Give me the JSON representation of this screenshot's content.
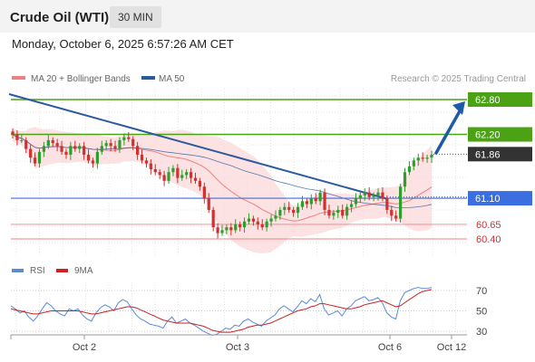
{
  "header": {
    "title": "Crude Oil (WTI)",
    "timeframe": "30 MIN",
    "datetime": "Monday, October 6, 2025 6:57:26 AM CET"
  },
  "legend": {
    "ma20_label": "MA 20 + Bollinger Bands",
    "ma50_label": "MA 50",
    "credit": "Research © 2025 Trading Central"
  },
  "colors": {
    "bull": "#2e9e2e",
    "bear": "#d13030",
    "ma20": "#f08080",
    "ma50": "#2c5aa0",
    "bollinger_fill": "#fbd8d8",
    "resistance": "#4aa214",
    "support": "#3b6fe0",
    "pivot": "#f08080",
    "target_arrow": "#1e5aa8",
    "current": "#333333",
    "rsi": "#5b8ad8",
    "rsi_ma": "#cc2222"
  },
  "chart_data": [
    {
      "type": "candlestick",
      "title": "Crude Oil (WTI)",
      "timeframe": "30 MIN",
      "x_tick_labels": [
        "Oct 2",
        "Oct 3",
        "Oct 6",
        "Oct 12"
      ],
      "ylim": [
        60.28,
        62.93
      ],
      "indicators": [
        "MA 20 + Bollinger Bands",
        "MA 50"
      ],
      "price_levels": [
        {
          "value": 62.8,
          "label": "62.80",
          "kind": "resistance"
        },
        {
          "value": 62.2,
          "label": "62.20",
          "kind": "resistance"
        },
        {
          "value": 61.86,
          "label": "61.86",
          "kind": "current"
        },
        {
          "value": 61.1,
          "label": "61.10",
          "kind": "support"
        },
        {
          "value": 60.65,
          "label": "60.65",
          "kind": "pivot"
        },
        {
          "value": 60.4,
          "label": "60.40",
          "kind": "pivot"
        }
      ],
      "close": [
        62.2,
        62.1,
        62.1,
        61.95,
        61.8,
        61.7,
        61.9,
        62.0,
        62.1,
        62.05,
        62.0,
        61.9,
        61.85,
        62.0,
        61.95,
        62.0,
        61.85,
        61.75,
        61.7,
        61.9,
        62.0,
        62.05,
        62.0,
        61.95,
        62.1,
        62.15,
        62.12,
        62.0,
        61.85,
        61.75,
        61.7,
        61.6,
        61.55,
        61.5,
        61.4,
        61.55,
        61.62,
        61.45,
        61.5,
        61.55,
        61.45,
        61.4,
        61.3,
        61.1,
        60.9,
        60.6,
        60.5,
        60.55,
        60.6,
        60.55,
        60.65,
        60.6,
        60.7,
        60.75,
        60.7,
        60.65,
        60.6,
        60.7,
        60.75,
        60.8,
        60.9,
        60.95,
        60.9,
        60.85,
        60.95,
        61.05,
        61.0,
        61.1,
        61.05,
        61.2,
        60.9,
        60.8,
        60.85,
        60.9,
        60.8,
        60.95,
        61.0,
        61.1,
        61.15,
        61.2,
        61.12,
        61.15,
        61.2,
        61.1,
        60.9,
        60.8,
        60.75,
        61.3,
        61.55,
        61.65,
        61.75,
        61.8,
        61.78,
        61.8,
        61.85
      ],
      "rsi": {
        "levels": [
          70,
          50,
          30
        ],
        "series": [
          {
            "name": "RSI",
            "values": [
              55,
              52,
              48,
              50,
              44,
              40,
              45,
              52,
              58,
              55,
              50,
              47,
              45,
              52,
              50,
              52,
              46,
              42,
              40,
              48,
              53,
              56,
              54,
              50,
              58,
              61,
              59,
              52,
              46,
              42,
              40,
              37,
              36,
              35,
              33,
              40,
              44,
              38,
              40,
              42,
              38,
              36,
              33,
              30,
              28,
              26,
              27,
              30,
              33,
              32,
              36,
              35,
              40,
              42,
              39,
              37,
              35,
              40,
              43,
              46,
              52,
              55,
              52,
              49,
              54,
              60,
              57,
              62,
              59,
              66,
              52,
              46,
              48,
              50,
              45,
              52,
              55,
              60,
              62,
              64,
              60,
              61,
              63,
              58,
              48,
              44,
              42,
              60,
              68,
              70,
              72,
              73,
              72,
              72,
              73
            ]
          },
          {
            "name": "9MA",
            "values": [
              52,
              51,
              50,
              49,
              48,
              47,
              47,
              48,
              49,
              50,
              50,
              50,
              50,
              50,
              50,
              50,
              49,
              48,
              47,
              47,
              48,
              49,
              50,
              51,
              52,
              53,
              54,
              54,
              53,
              51,
              49,
              47,
              45,
              43,
              41,
              40,
              39,
              38,
              38,
              38,
              38,
              37,
              36,
              35,
              33,
              31,
              30,
              29,
              29,
              29,
              30,
              31,
              32,
              34,
              35,
              36,
              36,
              37,
              38,
              40,
              42,
              44,
              46,
              48,
              50,
              51,
              52,
              54,
              55,
              57,
              57,
              56,
              55,
              54,
              53,
              52,
              52,
              53,
              54,
              56,
              57,
              58,
              59,
              60,
              58,
              56,
              54,
              55,
              58,
              61,
              64,
              67,
              69,
              70,
              71
            ]
          }
        ]
      }
    }
  ]
}
